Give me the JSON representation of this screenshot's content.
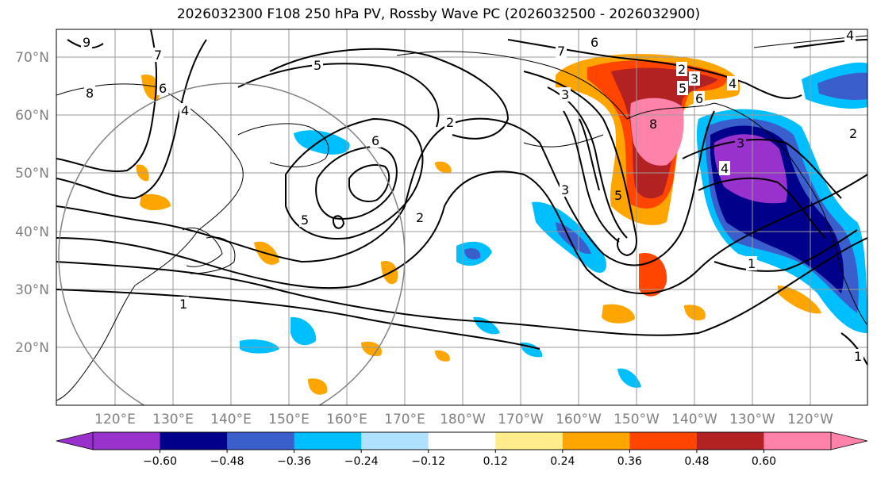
{
  "title": "2026032300 F108 250 hPa PV, Rossby Wave PC (2026032500 - 2026032900)",
  "lon_labels": [
    "120°E",
    "130°E",
    "140°E",
    "150°E",
    "160°E",
    "170°E",
    "180°W",
    "170°W",
    "160°W",
    "150°W",
    "140°W",
    "130°W",
    "120°W"
  ],
  "lat_labels": [
    "70°N",
    "60°N",
    "50°N",
    "40°N",
    "30°N",
    "20°N"
  ],
  "colorbar": {
    "colors": [
      "#9932CC",
      "#00008B",
      "#3A5FCD",
      "#00BFFF",
      "#B0E2FF",
      "#FFFFFF",
      "#FFEC8B",
      "#FFA500",
      "#FF4500",
      "#B22222",
      "#FF82AB"
    ],
    "ticks": [
      "−0.60",
      "−0.48",
      "−0.36",
      "−0.24",
      "−0.12",
      "0.12",
      "0.24",
      "0.36",
      "0.48",
      "0.60"
    ]
  },
  "contour_labels": [
    "9",
    "8",
    "7",
    "6",
    "5",
    "4",
    "3",
    "2",
    "1",
    "6",
    "5",
    "4",
    "3",
    "2",
    "1",
    "6",
    "7",
    "6",
    "5",
    "4",
    "3",
    "2",
    "8",
    "5",
    "3",
    "2",
    "4",
    "1"
  ]
}
